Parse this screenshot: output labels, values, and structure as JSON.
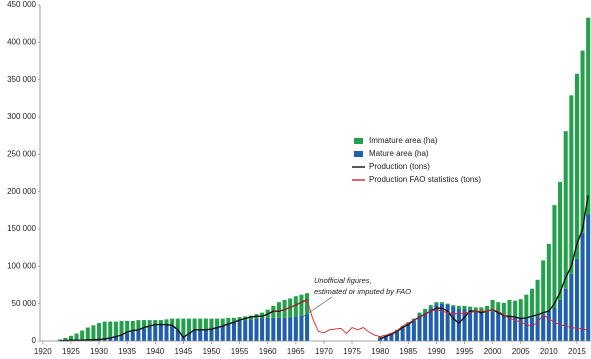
{
  "chart_data": {
    "type": "stacked-bar-line",
    "x": [
      1920,
      1921,
      1922,
      1923,
      1924,
      1925,
      1926,
      1927,
      1928,
      1929,
      1930,
      1931,
      1932,
      1933,
      1934,
      1935,
      1936,
      1937,
      1938,
      1939,
      1940,
      1941,
      1942,
      1943,
      1944,
      1945,
      1946,
      1947,
      1948,
      1949,
      1950,
      1951,
      1952,
      1953,
      1954,
      1955,
      1956,
      1957,
      1958,
      1959,
      1960,
      1961,
      1962,
      1963,
      1964,
      1965,
      1966,
      1967,
      1968,
      1969,
      1970,
      1971,
      1972,
      1973,
      1974,
      1975,
      1976,
      1977,
      1978,
      1979,
      1980,
      1981,
      1982,
      1983,
      1984,
      1985,
      1986,
      1987,
      1988,
      1989,
      1990,
      1991,
      1992,
      1993,
      1994,
      1995,
      1996,
      1997,
      1998,
      1999,
      2000,
      2001,
      2002,
      2003,
      2004,
      2005,
      2006,
      2007,
      2008,
      2009,
      2010,
      2011,
      2012,
      2013,
      2014,
      2015,
      2016,
      2017
    ],
    "series": [
      {
        "name": "Mature area (ha)",
        "kind": "bar",
        "color": "#1f5fad",
        "values": [
          null,
          null,
          null,
          0,
          0,
          0,
          500,
          500,
          1000,
          1000,
          2000,
          3000,
          4000,
          6000,
          8000,
          11000,
          13000,
          15000,
          17000,
          19000,
          21000,
          22000,
          22000,
          20000,
          15000,
          5000,
          10000,
          15000,
          16000,
          16000,
          17000,
          19000,
          21000,
          23000,
          25000,
          27000,
          28000,
          29000,
          30000,
          31000,
          31000,
          31000,
          31000,
          31000,
          32000,
          33000,
          34000,
          36000,
          null,
          null,
          null,
          null,
          null,
          null,
          null,
          null,
          null,
          null,
          null,
          null,
          5000,
          7000,
          10000,
          13000,
          17000,
          22000,
          27000,
          34000,
          38000,
          44000,
          49000,
          50000,
          49000,
          46000,
          43000,
          43000,
          42000,
          41000,
          40000,
          40000,
          40000,
          38000,
          35000,
          33000,
          31000,
          30000,
          30000,
          31000,
          33000,
          36000,
          40000,
          45000,
          55000,
          70000,
          90000,
          110000,
          145000,
          170000
        ]
      },
      {
        "name": "Immature area (ha)",
        "kind": "bar",
        "color": "#22a04b",
        "values": [
          null,
          null,
          null,
          2000,
          4000,
          7000,
          9500,
          13500,
          17000,
          20000,
          22000,
          23000,
          22000,
          20000,
          19000,
          16000,
          14000,
          13000,
          11000,
          9000,
          7000,
          6000,
          7000,
          10000,
          15000,
          25000,
          20000,
          15000,
          14000,
          14000,
          13000,
          11000,
          9000,
          8000,
          6000,
          5000,
          5000,
          5000,
          6000,
          7000,
          11000,
          16000,
          21000,
          24000,
          25000,
          27000,
          28000,
          28000,
          null,
          null,
          null,
          null,
          null,
          null,
          null,
          null,
          null,
          null,
          null,
          null,
          1000,
          1000,
          1000,
          2000,
          3000,
          3000,
          3000,
          4000,
          5000,
          4000,
          3000,
          2000,
          1000,
          2000,
          4000,
          4000,
          4000,
          4000,
          5000,
          7000,
          15000,
          14000,
          16000,
          22000,
          23000,
          26000,
          32000,
          39000,
          49000,
          72000,
          90000,
          137000,
          158000,
          211000,
          239000,
          248000,
          244000,
          263000
        ]
      },
      {
        "name": "Production (tons)",
        "kind": "line",
        "color": "#111111",
        "values": [
          null,
          null,
          null,
          500,
          500,
          1000,
          1000,
          1000,
          1500,
          1500,
          2000,
          3000,
          4000,
          6000,
          8000,
          12000,
          14000,
          15000,
          18000,
          20000,
          22000,
          22000,
          22000,
          21000,
          15000,
          5000,
          10000,
          15000,
          15000,
          15000,
          16000,
          18000,
          20000,
          23000,
          25000,
          28000,
          30000,
          32000,
          33000,
          33000,
          36000,
          40000,
          40000,
          42000,
          45000,
          48000,
          52000,
          55000,
          null,
          null,
          null,
          null,
          null,
          null,
          null,
          null,
          null,
          null,
          null,
          null,
          3000,
          6000,
          9000,
          13000,
          18000,
          22000,
          28000,
          32000,
          36000,
          40000,
          44000,
          44000,
          40000,
          30000,
          24000,
          32000,
          40000,
          40000,
          38000,
          40000,
          42000,
          38000,
          34000,
          33000,
          32000,
          30000,
          31000,
          33000,
          35000,
          38000,
          40000,
          50000,
          65000,
          85000,
          100000,
          130000,
          150000,
          195000
        ]
      },
      {
        "name": "Production FAO statistics (tons)",
        "kind": "line",
        "color": "#d9232b",
        "values": [
          null,
          null,
          null,
          null,
          null,
          null,
          null,
          null,
          null,
          null,
          null,
          null,
          null,
          null,
          null,
          null,
          null,
          null,
          null,
          null,
          null,
          null,
          null,
          null,
          null,
          null,
          null,
          null,
          null,
          null,
          null,
          null,
          null,
          null,
          null,
          null,
          null,
          null,
          null,
          null,
          null,
          40000,
          41000,
          42000,
          45000,
          48000,
          52000,
          55000,
          30000,
          13000,
          11000,
          15000,
          16000,
          17000,
          10000,
          18000,
          15000,
          18000,
          12000,
          8000,
          6000,
          8000,
          10000,
          14000,
          20000,
          24000,
          28000,
          32000,
          36000,
          40000,
          42000,
          40000,
          38000,
          37000,
          36000,
          38000,
          38000,
          40000,
          40000,
          40000,
          42000,
          40000,
          35000,
          30000,
          28000,
          25000,
          22000,
          20000,
          25000,
          35000,
          30000,
          25000,
          22000,
          20000,
          18000,
          17000,
          16000,
          15000
        ]
      }
    ],
    "annotation": [
      "Unofficial figures,",
      "estimated or imputed by FAO"
    ],
    "xlim": [
      1919.5,
      2017.5
    ],
    "xticks": [
      1920,
      1925,
      1930,
      1935,
      1940,
      1945,
      1950,
      1955,
      1960,
      1965,
      1970,
      1975,
      1980,
      1985,
      1990,
      1995,
      2000,
      2005,
      2010,
      2015
    ],
    "ylim": [
      0,
      450000
    ],
    "yticks": [
      0,
      {
        "value": 50000,
        "label": "50 000"
      },
      {
        "value": 100000,
        "label": "100 000"
      },
      {
        "value": 150000,
        "label": "150 000"
      },
      {
        "value": 200000,
        "label": "200 000"
      },
      {
        "value": 250000,
        "label": "250 000"
      },
      {
        "value": 300000,
        "label": "300 000"
      },
      {
        "value": 350000,
        "label": "350 000"
      },
      {
        "value": 400000,
        "label": "400 000"
      },
      {
        "value": 450000,
        "label": "450 000"
      }
    ],
    "legend_order": [
      1,
      0,
      2,
      3
    ]
  }
}
